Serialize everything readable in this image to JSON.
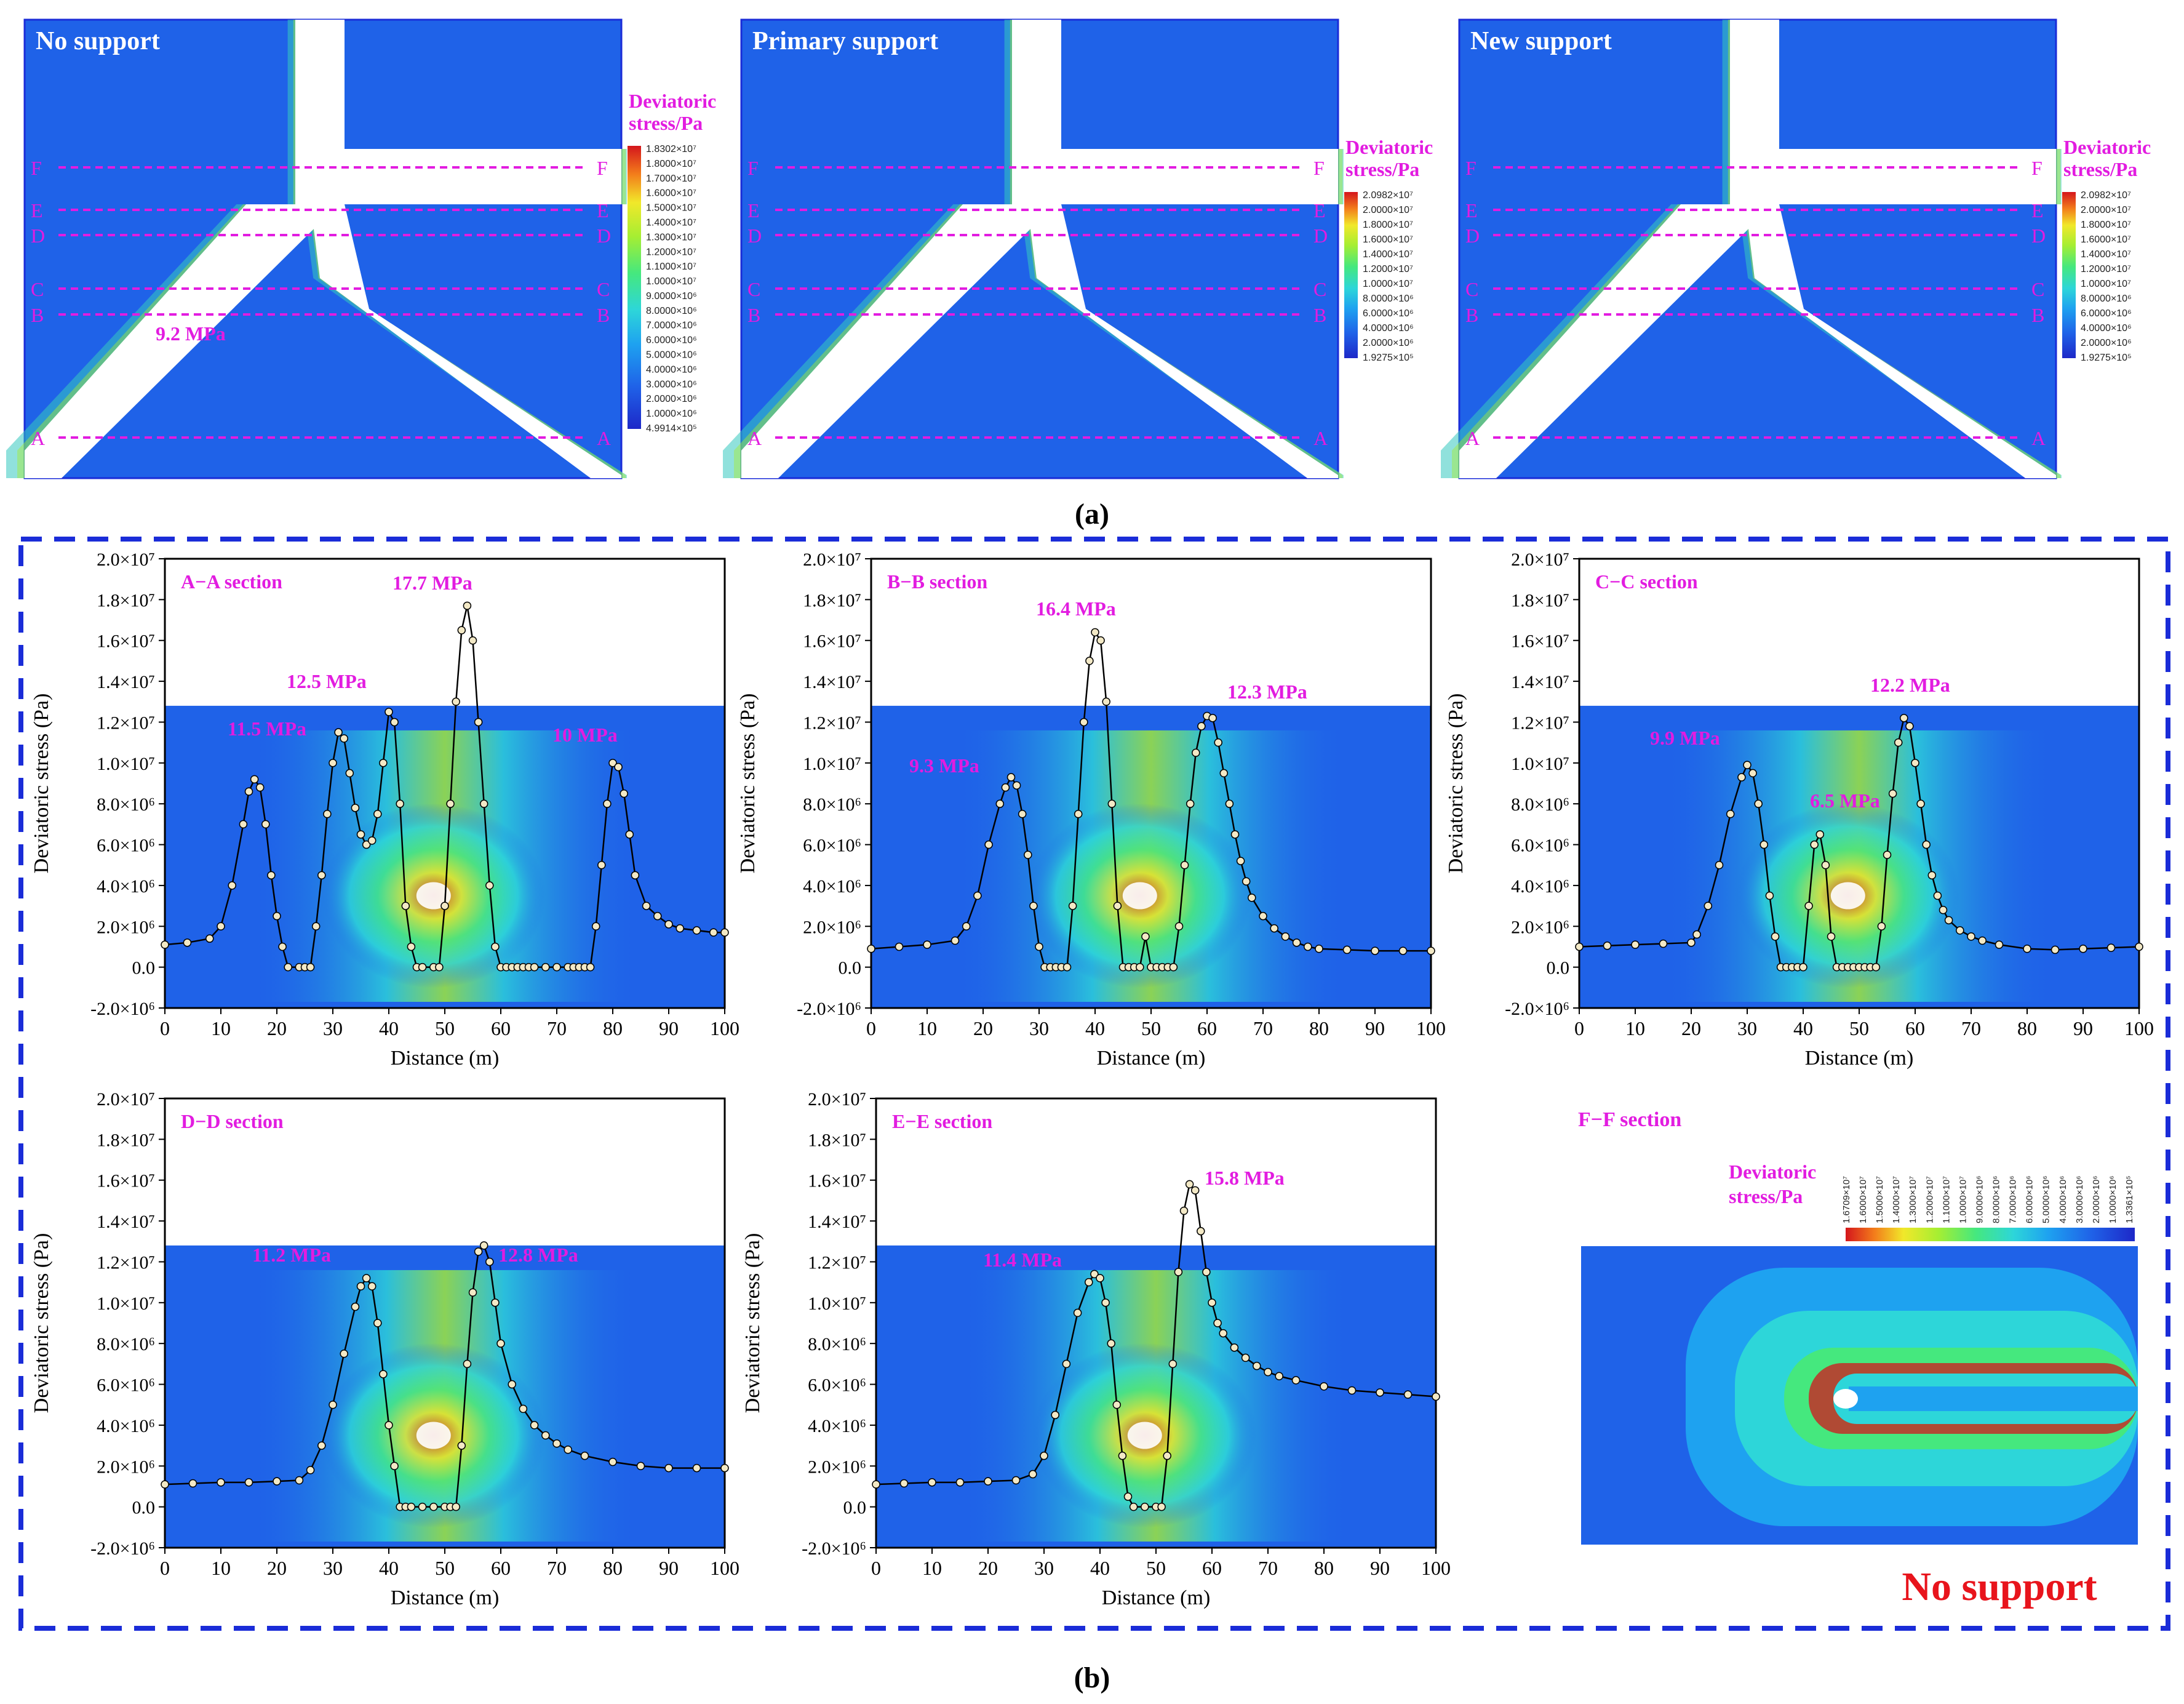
{
  "figure": {
    "caption_a": "(a)",
    "caption_b": "(b)",
    "panel_note": "No support"
  },
  "maps": [
    {
      "title": "No support",
      "legend_title": [
        "Deviatoric",
        "stress/Pa"
      ],
      "legend_values": [
        "1.8302×10⁷",
        "1.8000×10⁷",
        "1.7000×10⁷",
        "1.6000×10⁷",
        "1.5000×10⁷",
        "1.4000×10⁷",
        "1.3000×10⁷",
        "1.2000×10⁷",
        "1.1000×10⁷",
        "1.0000×10⁷",
        "9.0000×10⁶",
        "8.0000×10⁶",
        "7.0000×10⁶",
        "6.0000×10⁶",
        "5.0000×10⁶",
        "4.0000×10⁶",
        "3.0000×10⁶",
        "2.0000×10⁶",
        "1.0000×10⁶",
        "4.9914×10⁵"
      ]
    },
    {
      "title": "Primary support",
      "legend_title": [
        "Deviatoric",
        "stress/Pa"
      ],
      "legend_values": [
        "2.0982×10⁷",
        "2.0000×10⁷",
        "1.8000×10⁷",
        "1.6000×10⁷",
        "1.4000×10⁷",
        "1.2000×10⁷",
        "1.0000×10⁷",
        "8.0000×10⁶",
        "6.0000×10⁶",
        "4.0000×10⁶",
        "2.0000×10⁶",
        "1.9275×10⁵"
      ]
    },
    {
      "title": "New support",
      "legend_title": [
        "Deviatoric",
        "stress/Pa"
      ],
      "legend_values": [
        "2.0982×10⁷",
        "2.0000×10⁷",
        "1.8000×10⁷",
        "1.6000×10⁷",
        "1.4000×10⁷",
        "1.2000×10⁷",
        "1.0000×10⁷",
        "8.0000×10⁶",
        "6.0000×10⁶",
        "4.0000×10⁶",
        "2.0000×10⁶",
        "1.9275×10⁵"
      ]
    }
  ],
  "section_letters": [
    "F",
    "E",
    "D",
    "C",
    "B",
    "A"
  ],
  "ff_legend": {
    "title": [
      "Deviatoric",
      "stress/Pa"
    ],
    "values": [
      "1.6709×10⁷",
      "1.6000×10⁷",
      "1.5000×10⁷",
      "1.4000×10⁷",
      "1.3000×10⁷",
      "1.2000×10⁷",
      "1.1000×10⁷",
      "1.0000×10⁷",
      "9.0000×10⁶",
      "8.0000×10⁶",
      "7.0000×10⁶",
      "6.0000×10⁶",
      "5.0000×10⁶",
      "4.0000×10⁶",
      "3.0000×10⁶",
      "2.0000×10⁶",
      "1.0000×10⁶",
      "1.3361×10⁵"
    ]
  },
  "ff_title": "F−F section",
  "colors": {
    "magenta": "#e21ce0",
    "frame": "#1a2cd8",
    "red_label": "#e8141c",
    "ramp": [
      "#1e3ad6",
      "#1f62e8",
      "#1e8ff0",
      "#25b6ee",
      "#2dd6d9",
      "#36e6a8",
      "#4ce76e",
      "#86ec3c",
      "#c4ef2e",
      "#f1e82a",
      "#f7b621",
      "#f37d1b",
      "#e8401a",
      "#d4161c"
    ]
  },
  "chart_data": [
    {
      "type": "scatter",
      "title": "A−A section",
      "xlabel": "Distance (m)",
      "ylabel": "Deviatoric stress (Pa)",
      "xlim": [
        0,
        100
      ],
      "ylim": [
        -2000000,
        20000000
      ],
      "xticks": [
        "0",
        "10",
        "20",
        "30",
        "40",
        "50",
        "60",
        "70",
        "80",
        "90",
        "100"
      ],
      "yticks": [
        "-2.0×10⁶",
        "0.0",
        "2.0×10⁶",
        "4.0×10⁶",
        "6.0×10⁶",
        "8.0×10⁶",
        "1.0×10⁷",
        "1.2×10⁷",
        "1.4×10⁷",
        "1.6×10⁷",
        "1.8×10⁷",
        "2.0×10⁷"
      ],
      "annotations": [
        "9.2 MPa",
        "11.5 MPa",
        "12.5 MPa",
        "17.7 MPa",
        "10 MPa"
      ],
      "series": [
        {
          "x": [
            0,
            4,
            8,
            10,
            12,
            14,
            15,
            16,
            17,
            18,
            19,
            20,
            21,
            22,
            24,
            25,
            26,
            27,
            28,
            29,
            30,
            31,
            32,
            33,
            34,
            35,
            36,
            37,
            38,
            39,
            40,
            41,
            42,
            43,
            44,
            45,
            46,
            48,
            49,
            50,
            51,
            52,
            53,
            54,
            55,
            56,
            57,
            58,
            59,
            60,
            61,
            62,
            63,
            64,
            65,
            66,
            68,
            70,
            72,
            73,
            74,
            75,
            76,
            77,
            78,
            79,
            80,
            81,
            82,
            83,
            84,
            86,
            88,
            90,
            92,
            95,
            98,
            100
          ],
          "y": [
            1100000,
            1200000,
            1400000,
            2000000,
            4000000,
            7000000,
            8600000,
            9200000,
            8800000,
            7000000,
            4500000,
            2500000,
            1000000,
            0,
            0,
            0,
            0,
            2000000,
            4500000,
            7500000,
            10000000,
            11500000,
            11200000,
            9500000,
            7800000,
            6500000,
            6000000,
            6200000,
            7500000,
            10000000,
            12500000,
            12000000,
            8000000,
            3000000,
            1000000,
            0,
            0,
            0,
            0,
            3000000,
            8000000,
            13000000,
            16500000,
            17700000,
            16000000,
            12000000,
            8000000,
            4000000,
            1000000,
            0,
            0,
            0,
            0,
            0,
            0,
            0,
            0,
            0,
            0,
            0,
            0,
            0,
            0,
            2000000,
            5000000,
            8000000,
            10000000,
            9800000,
            8500000,
            6500000,
            4500000,
            3000000,
            2500000,
            2100000,
            1900000,
            1800000,
            1700000,
            1700000
          ]
        }
      ]
    },
    {
      "type": "scatter",
      "title": "B−B section",
      "xlabel": "Distance (m)",
      "ylabel": "Deviatoric stress (Pa)",
      "xlim": [
        0,
        100
      ],
      "ylim": [
        -2000000,
        20000000
      ],
      "xticks": [
        "0",
        "10",
        "20",
        "30",
        "40",
        "50",
        "60",
        "70",
        "80",
        "90",
        "100"
      ],
      "yticks": [
        "-2.0×10⁶",
        "0.0",
        "2.0×10⁶",
        "4.0×10⁶",
        "6.0×10⁶",
        "8.0×10⁶",
        "1.0×10⁷",
        "1.2×10⁷",
        "1.4×10⁷",
        "1.6×10⁷",
        "1.8×10⁷",
        "2.0×10⁷"
      ],
      "annotations": [
        "9.3 MPa",
        "16.4 MPa",
        "12.3 MPa"
      ],
      "series": [
        {
          "x": [
            0,
            5,
            10,
            15,
            17,
            19,
            21,
            23,
            24,
            25,
            26,
            27,
            28,
            29,
            30,
            31,
            32,
            33,
            34,
            35,
            36,
            37,
            38,
            39,
            40,
            41,
            42,
            43,
            44,
            45,
            46,
            47,
            48,
            49,
            50,
            51,
            52,
            53,
            54,
            55,
            56,
            57,
            58,
            59,
            60,
            61,
            62,
            63,
            64,
            65,
            66,
            67,
            68,
            70,
            72,
            74,
            76,
            78,
            80,
            85,
            90,
            95,
            100
          ],
          "y": [
            900000,
            1000000,
            1100000,
            1300000,
            2000000,
            3500000,
            6000000,
            8000000,
            8800000,
            9300000,
            8900000,
            7500000,
            5500000,
            3000000,
            1000000,
            0,
            0,
            0,
            0,
            0,
            3000000,
            7500000,
            12000000,
            15000000,
            16400000,
            16000000,
            13000000,
            8000000,
            3000000,
            0,
            0,
            0,
            0,
            1500000,
            0,
            0,
            0,
            0,
            0,
            2000000,
            5000000,
            8000000,
            10500000,
            11800000,
            12300000,
            12200000,
            11000000,
            9500000,
            8000000,
            6500000,
            5200000,
            4200000,
            3400000,
            2500000,
            1900000,
            1500000,
            1200000,
            1000000,
            900000,
            850000,
            800000,
            800000,
            800000
          ]
        }
      ]
    },
    {
      "type": "scatter",
      "title": "C−C section",
      "xlabel": "Distance (m)",
      "ylabel": "Deviatoric stress (Pa)",
      "xlim": [
        0,
        100
      ],
      "ylim": [
        -2000000,
        20000000
      ],
      "xticks": [
        "0",
        "10",
        "20",
        "30",
        "40",
        "50",
        "60",
        "70",
        "80",
        "90",
        "100"
      ],
      "yticks": [
        "-2.0×10⁶",
        "0.0",
        "2.0×10⁶",
        "4.0×10⁶",
        "6.0×10⁶",
        "8.0×10⁶",
        "1.0×10⁷",
        "1.2×10⁷",
        "1.4×10⁷",
        "1.6×10⁷",
        "1.8×10⁷",
        "2.0×10⁷"
      ],
      "annotations": [
        "9.9 MPa",
        "6.5 MPa",
        "12.2 MPa"
      ],
      "series": [
        {
          "x": [
            0,
            5,
            10,
            15,
            20,
            21,
            23,
            25,
            27,
            29,
            30,
            31,
            32,
            33,
            34,
            35,
            36,
            37,
            38,
            39,
            40,
            41,
            42,
            43,
            44,
            45,
            46,
            47,
            48,
            49,
            50,
            51,
            52,
            53,
            54,
            55,
            56,
            57,
            58,
            59,
            60,
            61,
            62,
            63,
            64,
            65,
            66,
            68,
            70,
            72,
            75,
            80,
            85,
            90,
            95,
            100
          ],
          "y": [
            1000000,
            1050000,
            1100000,
            1150000,
            1200000,
            1600000,
            3000000,
            5000000,
            7500000,
            9300000,
            9900000,
            9500000,
            8000000,
            6000000,
            3500000,
            1500000,
            0,
            0,
            0,
            0,
            0,
            3000000,
            6000000,
            6500000,
            5000000,
            1500000,
            0,
            0,
            0,
            0,
            0,
            0,
            0,
            0,
            2000000,
            5500000,
            8500000,
            11000000,
            12200000,
            11800000,
            10000000,
            8000000,
            6000000,
            4500000,
            3500000,
            2800000,
            2300000,
            1800000,
            1500000,
            1300000,
            1100000,
            900000,
            850000,
            900000,
            950000,
            1000000
          ]
        }
      ]
    },
    {
      "type": "scatter",
      "title": "D−D section",
      "xlabel": "Distance (m)",
      "ylabel": "Deviatoric stress (Pa)",
      "xlim": [
        0,
        100
      ],
      "ylim": [
        -2000000,
        20000000
      ],
      "xticks": [
        "0",
        "10",
        "20",
        "30",
        "40",
        "50",
        "60",
        "70",
        "80",
        "90",
        "100"
      ],
      "yticks": [
        "-2.0×10⁶",
        "0.0",
        "2.0×10⁶",
        "4.0×10⁶",
        "6.0×10⁶",
        "8.0×10⁶",
        "1.0×10⁷",
        "1.2×10⁷",
        "1.4×10⁷",
        "1.6×10⁷",
        "1.8×10⁷",
        "2.0×10⁷"
      ],
      "annotations": [
        "11.2 MPa",
        "12.8 MPa"
      ],
      "series": [
        {
          "x": [
            0,
            5,
            10,
            15,
            20,
            24,
            26,
            28,
            30,
            32,
            34,
            35,
            36,
            37,
            38,
            39,
            40,
            41,
            42,
            43,
            44,
            46,
            48,
            50,
            51,
            52,
            53,
            54,
            55,
            56,
            57,
            58,
            59,
            60,
            62,
            64,
            66,
            68,
            70,
            72,
            75,
            80,
            85,
            90,
            95,
            100
          ],
          "y": [
            1100000,
            1150000,
            1200000,
            1200000,
            1250000,
            1300000,
            1800000,
            3000000,
            5000000,
            7500000,
            9800000,
            10800000,
            11200000,
            10800000,
            9000000,
            6500000,
            4000000,
            2000000,
            0,
            0,
            0,
            0,
            0,
            0,
            0,
            0,
            3000000,
            7000000,
            10500000,
            12500000,
            12800000,
            12000000,
            10000000,
            8000000,
            6000000,
            4800000,
            4000000,
            3500000,
            3100000,
            2800000,
            2500000,
            2200000,
            2000000,
            1900000,
            1900000,
            1900000
          ]
        }
      ]
    },
    {
      "type": "scatter",
      "title": "E−E section",
      "xlabel": "Distance (m)",
      "ylabel": "Deviatoric stress (Pa)",
      "xlim": [
        0,
        100
      ],
      "ylim": [
        -2000000,
        20000000
      ],
      "xticks": [
        "0",
        "10",
        "20",
        "30",
        "40",
        "50",
        "60",
        "70",
        "80",
        "90",
        "100"
      ],
      "yticks": [
        "-2.0×10⁶",
        "0.0",
        "2.0×10⁶",
        "4.0×10⁶",
        "6.0×10⁶",
        "8.0×10⁶",
        "1.0×10⁷",
        "1.2×10⁷",
        "1.4×10⁷",
        "1.6×10⁷",
        "1.8×10⁷",
        "2.0×10⁷"
      ],
      "annotations": [
        "11.4 MPa",
        "15.8 MPa"
      ],
      "series": [
        {
          "x": [
            0,
            5,
            10,
            15,
            20,
            25,
            28,
            30,
            32,
            34,
            36,
            38,
            39,
            40,
            41,
            42,
            43,
            44,
            45,
            46,
            48,
            50,
            51,
            52,
            53,
            54,
            55,
            56,
            57,
            58,
            59,
            60,
            61,
            62,
            64,
            66,
            68,
            70,
            72,
            75,
            80,
            85,
            90,
            95,
            100
          ],
          "y": [
            1100000,
            1150000,
            1200000,
            1200000,
            1250000,
            1300000,
            1600000,
            2500000,
            4500000,
            7000000,
            9500000,
            11000000,
            11400000,
            11200000,
            10000000,
            8000000,
            5000000,
            2500000,
            500000,
            0,
            0,
            0,
            0,
            2500000,
            7000000,
            11500000,
            14500000,
            15800000,
            15500000,
            13500000,
            11500000,
            10000000,
            9000000,
            8500000,
            7800000,
            7300000,
            6900000,
            6600000,
            6400000,
            6200000,
            5900000,
            5700000,
            5600000,
            5500000,
            5400000
          ]
        }
      ]
    }
  ]
}
